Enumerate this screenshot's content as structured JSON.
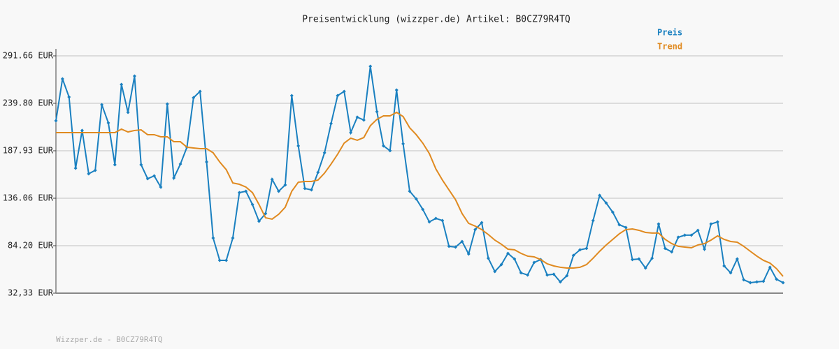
{
  "chart_data": {
    "type": "line",
    "title": "Preisentwicklung (wizzper.de) Artikel: B0CZ79R4TQ",
    "footer": "Wizzper.de - B0CZ79R4TQ",
    "ylim": [
      32.33,
      291.66
    ],
    "yticks": [
      {
        "value": 32.33,
        "label": "32,33 EUR"
      },
      {
        "value": 84.2,
        "label": "84.20 EUR"
      },
      {
        "value": 136.06,
        "label": "136.06 EUR"
      },
      {
        "value": 187.93,
        "label": "187.93 EUR"
      },
      {
        "value": 239.8,
        "label": "239.80 EUR"
      },
      {
        "value": 291.66,
        "label": "291.66 EUR"
      }
    ],
    "grid": true,
    "legend": "top-right",
    "series": [
      {
        "name": "Preis",
        "color": "#1a80c0",
        "markers": true,
        "values": [
          220.7,
          266.5,
          246.7,
          168.9,
          210.1,
          162.8,
          166.6,
          238.3,
          218.4,
          172.7,
          260.4,
          229.9,
          269.5,
          172.7,
          157.4,
          160.5,
          148.3,
          239.0,
          158.2,
          173.4,
          191.8,
          245.9,
          252.8,
          175.7,
          92.6,
          68.2,
          68.2,
          92.6,
          142.2,
          143.7,
          129.2,
          110.9,
          119.3,
          156.7,
          143.7,
          150.6,
          248.2,
          193.3,
          146.7,
          145.2,
          164.3,
          185.7,
          217.7,
          248.2,
          252.8,
          207.8,
          224.6,
          221.5,
          280.2,
          230.6,
          193.3,
          188.0,
          254.3,
          195.6,
          143.7,
          135.3,
          123.9,
          110.2,
          114.0,
          111.7,
          83.5,
          82.7,
          88.8,
          75.1,
          101.8,
          109.4,
          70.5,
          56.0,
          63.6,
          75.8,
          69.7,
          54.5,
          52.2,
          65.9,
          69.0,
          52.2,
          53.0,
          44.6,
          51.4,
          73.6,
          79.7,
          81.2,
          111.7,
          139.2,
          130.8,
          120.8,
          107.1,
          104.1,
          69.0,
          69.7,
          59.8,
          70.5,
          107.9,
          81.2,
          77.4,
          93.4,
          95.7,
          95.7,
          101.0,
          80.4,
          107.9,
          110.2,
          62.1,
          54.5,
          69.7,
          46.9,
          43.8,
          44.6,
          45.3,
          60.6,
          47.6,
          43.8
        ]
      },
      {
        "name": "Trend",
        "color": "#e08a20",
        "markers": false,
        "values": [
          207.8,
          207.8,
          207.8,
          207.8,
          207.8,
          207.8,
          207.8,
          207.8,
          207.8,
          207.8,
          211.6,
          208.5,
          210.1,
          210.8,
          205.5,
          205.5,
          203.2,
          203.2,
          197.8,
          197.8,
          191.8,
          191.0,
          190.2,
          190.2,
          185.7,
          175.7,
          167.3,
          152.8,
          151.3,
          148.3,
          142.2,
          129.2,
          114.7,
          113.2,
          118.5,
          126.2,
          143.7,
          153.6,
          154.4,
          154.4,
          155.9,
          163.5,
          173.4,
          184.1,
          196.3,
          201.7,
          199.4,
          202.4,
          215.4,
          222.3,
          226.1,
          226.1,
          229.9,
          225.3,
          213.1,
          205.5,
          196.3,
          184.9,
          168.1,
          155.9,
          145.2,
          134.5,
          119.3,
          108.6,
          105.6,
          101.8,
          96.4,
          90.3,
          85.8,
          80.4,
          79.7,
          75.8,
          72.8,
          72.0,
          69.0,
          64.4,
          62.1,
          60.6,
          59.8,
          59.8,
          60.6,
          63.6,
          70.5,
          78.1,
          85.0,
          91.1,
          97.2,
          101.8,
          102.5,
          101.0,
          98.7,
          98.0,
          98.0,
          91.1,
          86.5,
          83.5,
          82.7,
          81.9,
          85.0,
          86.5,
          90.3,
          94.9,
          91.1,
          88.8,
          88.0,
          83.5,
          78.1,
          72.8,
          68.2,
          65.2,
          59.1,
          50.7
        ]
      }
    ]
  }
}
